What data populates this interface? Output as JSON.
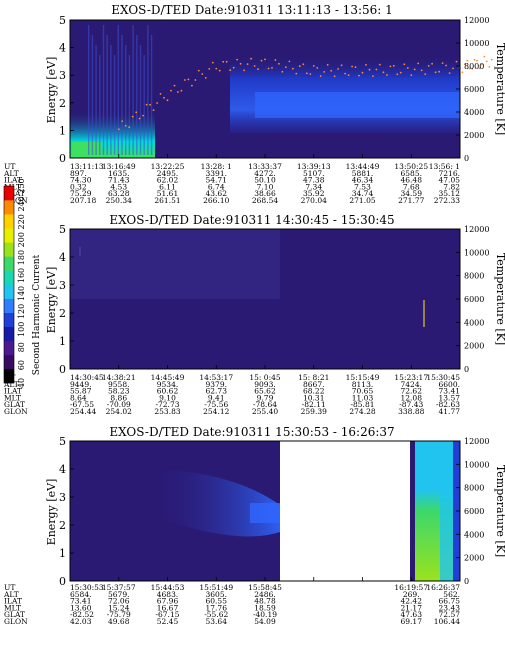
{
  "colors": {
    "background": "#2a1a74",
    "band_blue": "#1f3fd6",
    "band_light": "#2f66ff",
    "low_cyan": "#00d8e0",
    "low_green": "#3de060",
    "colorbar": [
      "#000000",
      "#3a0a63",
      "#4b1a8f",
      "#1a1aa8",
      "#1f3fd6",
      "#2f7cff",
      "#21c4ef",
      "#1ad7b0",
      "#3cd86a",
      "#9be21d",
      "#e6ef00",
      "#ffd200",
      "#ff8a00",
      "#e60000"
    ]
  },
  "colorbar": {
    "label": "Second Harmonic Current",
    "ticks": [
      "40",
      "60",
      "80",
      "100",
      "120",
      "140",
      "160",
      "180",
      "200",
      "220",
      "240",
      "250"
    ]
  },
  "chart_data": [
    {
      "type": "heatmap",
      "title": "EXOS-D/TED   Date:910311  13:11:13 - 13:56: 1",
      "ylabel": "Energy [eV]",
      "y2label": "Temperature [K]",
      "ylim": [
        0,
        5
      ],
      "y2lim": [
        0,
        12000
      ],
      "yticks": [
        "0",
        "1",
        "2",
        "3",
        "4",
        "5"
      ],
      "y2ticks": [
        "0",
        "2000",
        "4000",
        "6000",
        "8000",
        "10000",
        "12000"
      ],
      "ut_ticks": [
        "13:11:13",
        "13:16:49",
        "13:22:25",
        "13:28: 1",
        "13:33:37",
        "13:39:13",
        "13:44:49",
        "13:50:25",
        "13:56: 1"
      ],
      "table": {
        "labels": [
          "UT",
          "ALT",
          "ILAT",
          "MLT",
          "GLAT",
          "GLON"
        ],
        "columns": [
          [
            "13:11:13",
            "897.",
            "74.30",
            "0.32",
            "75.29",
            "207.18"
          ],
          [
            "13:16:49",
            "1635.",
            "71.43",
            "4.53",
            "63.28",
            "250.34"
          ],
          [
            "13:22:25",
            "2495.",
            "62.02",
            "6.11",
            "51.61",
            "261.51"
          ],
          [
            "13:28: 1",
            "3391.",
            "54.71",
            "6.74",
            "43.62",
            "266.10"
          ],
          [
            "13:33:37",
            "4272.",
            "50.10",
            "7.10",
            "38.66",
            "268.54"
          ],
          [
            "13:39:13",
            "5107.",
            "47.38",
            "7.34",
            "35.92",
            "270.04"
          ],
          [
            "13:44:49",
            "5881.",
            "46.34",
            "7.53",
            "34.74",
            "271.05"
          ],
          [
            "13:50:25",
            "6585.",
            "46.48",
            "7.68",
            "34.59",
            "271.77"
          ],
          [
            "13:56: 1",
            "7216.",
            "47.05",
            "7.82",
            "35.12",
            "272.33"
          ]
        ]
      },
      "temperature_trace": [
        [
          1,
          2500
        ],
        [
          2,
          5500
        ],
        [
          3,
          8000
        ],
        [
          4,
          8200
        ],
        [
          5,
          7600
        ],
        [
          6,
          7600
        ],
        [
          7,
          7700
        ],
        [
          8,
          7900
        ],
        [
          8.7,
          8500
        ]
      ]
    },
    {
      "type": "heatmap",
      "title": "EXOS-D/TED   Date:910311  14:30:45 - 15:30:45",
      "ylabel": "Energy [eV]",
      "y2label": "Temperature [K]",
      "ylim": [
        0,
        5
      ],
      "y2lim": [
        0,
        12000
      ],
      "yticks": [
        "0",
        "1",
        "2",
        "3",
        "4",
        "5"
      ],
      "y2ticks": [
        "0",
        "2000",
        "4000",
        "6000",
        "8000",
        "10000",
        "12000"
      ],
      "ut_ticks": [
        "14:30:45",
        "14:38:21",
        "14:45:49",
        "14:53:17",
        "15: 0:45",
        "15: 8:21",
        "15:15:49",
        "15:23:17",
        "15:30:45"
      ],
      "table": {
        "labels": [
          "UT",
          "ALT",
          "ILAT",
          "MLT",
          "GLAT",
          "GLON"
        ],
        "columns": [
          [
            "14:30:45",
            "9449.",
            "55.87",
            "8.64",
            "-67.55",
            "254.44"
          ],
          [
            "14:38:21",
            "9558.",
            "58.23",
            "8.86",
            "-70.09",
            "254.02"
          ],
          [
            "14:45:49",
            "9534.",
            "60.62",
            "9.10",
            "-72.73",
            "253.83"
          ],
          [
            "14:53:17",
            "9379.",
            "62.73",
            "9.41",
            "-75.56",
            "254.12"
          ],
          [
            "15: 0:45",
            "9093.",
            "65.62",
            "9.79",
            "-78.64",
            "255.40"
          ],
          [
            "15: 8:21",
            "8667.",
            "68.22",
            "10.31",
            "-82.11",
            "259.39"
          ],
          [
            "15:15:49",
            "8113.",
            "70.65",
            "11.03",
            "-85.81",
            "274.28"
          ],
          [
            "15:23:17",
            "7424.",
            "72.62",
            "12.08",
            "-87.43",
            "338.88"
          ],
          [
            "15:30:45",
            "6600.",
            "73.41",
            "13.57",
            "-82.63",
            "41.77"
          ]
        ]
      },
      "temperature_trace": []
    },
    {
      "type": "heatmap",
      "title": "EXOS-D/TED   Date:910311  15:30:53 - 16:26:37",
      "ylabel": "Energy [eV]",
      "y2label": "Temperature [K]",
      "ylim": [
        0,
        5
      ],
      "y2lim": [
        0,
        12000
      ],
      "yticks": [
        "0",
        "1",
        "2",
        "3",
        "4",
        "5"
      ],
      "y2ticks": [
        "0",
        "2000",
        "4000",
        "6000",
        "8000",
        "10000",
        "12000"
      ],
      "ut_ticks": [
        "15:30:53",
        "15:37:57",
        "15:44:53",
        "15:51:49",
        "15:58:45",
        "",
        "",
        "16:19:57",
        "16:26:37"
      ],
      "table": {
        "labels": [
          "UT",
          "ALT",
          "ILAT",
          "MLT",
          "GLAT",
          "GLON"
        ],
        "columns": [
          [
            "15:30:53",
            "6584.",
            "73.41",
            "13.60",
            "-82.52",
            "42.03"
          ],
          [
            "15:37:57",
            "5679.",
            "72.06",
            "15.24",
            "-75.79",
            "49.68"
          ],
          [
            "15:44:53",
            "4683.",
            "67.96",
            "16.67",
            "-67.15",
            "52.45"
          ],
          [
            "15:51:49",
            "3605.",
            "60.55",
            "17.76",
            "-55.62",
            "53.64"
          ],
          [
            "15:58:45",
            "2486.",
            "48.78",
            "18.59",
            "-40.19",
            "54.09"
          ],
          [
            "",
            "",
            "",
            "",
            "",
            ""
          ],
          [
            "",
            "",
            "",
            "",
            "",
            ""
          ],
          [
            "16:19:57",
            "269.",
            "42.42",
            "21.17",
            "47.63",
            "69.17"
          ],
          [
            "16:26:37",
            "562.",
            "66.75",
            "23.43",
            "72.57",
            "106.44"
          ]
        ]
      },
      "temperature_trace": []
    }
  ]
}
